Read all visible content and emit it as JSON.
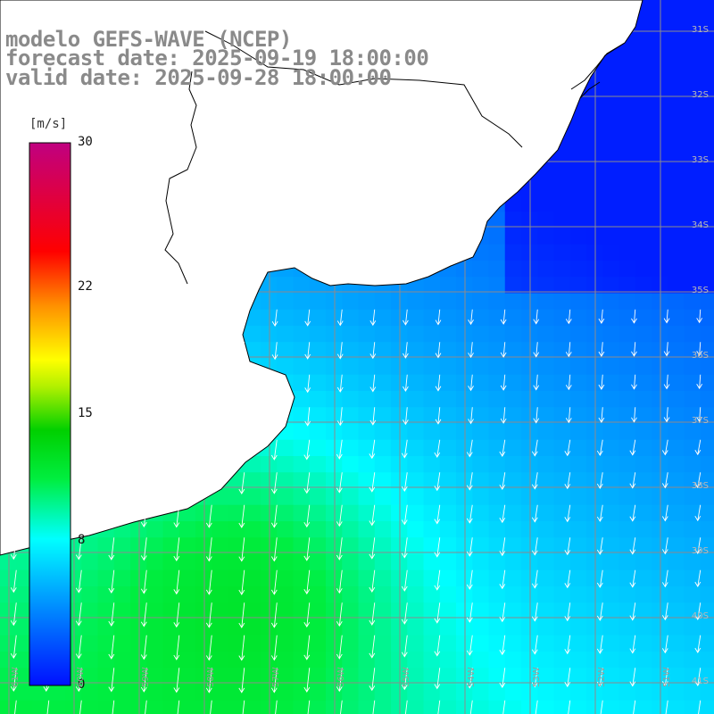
{
  "header": {
    "line1": "modelo GEFS-WAVE (NCEP)",
    "line2": "forecast date: 2025-09-19 18:00:00",
    "line3": "valid date: 2025-09-28 18:00:00"
  },
  "colorbar": {
    "unit": "[m/s]",
    "ticks": [
      {
        "value": 30,
        "label": "30"
      },
      {
        "value": 22,
        "label": "22"
      },
      {
        "value": 15,
        "label": "15"
      },
      {
        "value": 8,
        "label": "8"
      },
      {
        "value": 0,
        "label": "0"
      }
    ],
    "range": [
      0,
      30
    ]
  },
  "map": {
    "lat_labels": [
      {
        "lat": -31,
        "label": "31S"
      },
      {
        "lat": -32,
        "label": "32S"
      },
      {
        "lat": -33,
        "label": "33S"
      },
      {
        "lat": -34,
        "label": "34S"
      },
      {
        "lat": -35,
        "label": "35S"
      },
      {
        "lat": -36,
        "label": "36S"
      },
      {
        "lat": -37,
        "label": "37S"
      },
      {
        "lat": -38,
        "label": "38S"
      },
      {
        "lat": -39,
        "label": "39S"
      },
      {
        "lat": -40,
        "label": "40S"
      },
      {
        "lat": -41,
        "label": "41S"
      }
    ],
    "lon_labels": [
      {
        "lon": -61,
        "label": "61W"
      },
      {
        "lon": -60,
        "label": "60W"
      },
      {
        "lon": -59,
        "label": "59W"
      },
      {
        "lon": -58,
        "label": "58W"
      },
      {
        "lon": -57,
        "label": "57W"
      },
      {
        "lon": -56,
        "label": "56W"
      },
      {
        "lon": -55,
        "label": "55W"
      },
      {
        "lon": -54,
        "label": "54W"
      },
      {
        "lon": -53,
        "label": "53W"
      },
      {
        "lon": -52,
        "label": "52W"
      },
      {
        "lon": -51,
        "label": "51W"
      }
    ],
    "land_color": "#ffffff",
    "coast_color": "#000000",
    "grid_color": "#8c8c8c",
    "arrow_color": "#ffffff"
  }
}
